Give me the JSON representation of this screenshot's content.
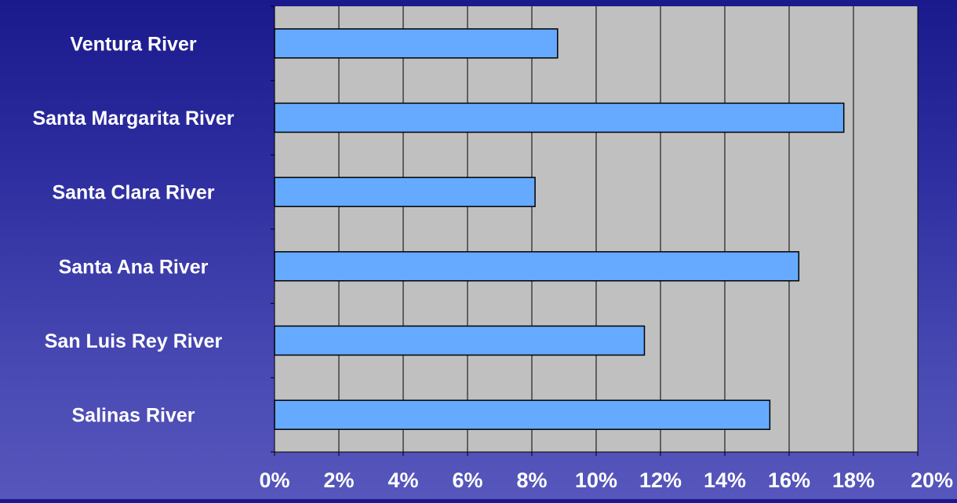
{
  "chart_data": {
    "type": "bar",
    "orientation": "horizontal",
    "categories": [
      "Ventura River",
      "Santa Margarita River",
      "Santa Clara River",
      "Santa Ana River",
      "San Luis Rey River",
      "Salinas River"
    ],
    "values": [
      8.8,
      17.7,
      8.1,
      16.3,
      11.5,
      15.4
    ],
    "value_unit": "%",
    "xlim": [
      0,
      20
    ],
    "xticks": [
      "0%",
      "2%",
      "4%",
      "6%",
      "8%",
      "10%",
      "12%",
      "14%",
      "16%",
      "18%",
      "20%"
    ],
    "title": "",
    "xlabel": "",
    "ylabel": "",
    "grid": true,
    "legend": "none",
    "colors": {
      "bar_fill": "#66aaff",
      "bar_stroke": "#000000",
      "plot_background": "#c0c0c0",
      "gridline": "#000000",
      "text": "#ffffff"
    }
  }
}
